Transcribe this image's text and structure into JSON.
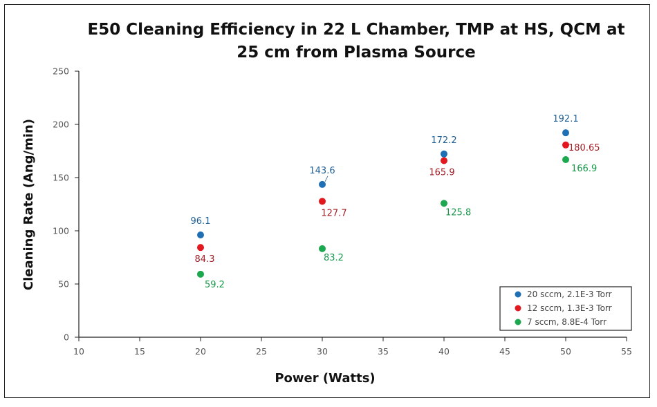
{
  "chart_data": {
    "type": "scatter",
    "title_lines": [
      "E50 Cleaning Efficiency in 22 L Chamber, TMP at HS, QCM at",
      "25 cm from Plasma Source"
    ],
    "xlabel": "Power (Watts)",
    "ylabel": "Cleaning Rate (Ang/min)",
    "xlim": [
      10,
      55
    ],
    "ylim": [
      0,
      250
    ],
    "x_ticks": [
      10,
      15,
      20,
      25,
      30,
      35,
      40,
      45,
      50,
      55
    ],
    "y_ticks": [
      0,
      50,
      100,
      150,
      200,
      250
    ],
    "grid": false,
    "legend_position": "bottom-right",
    "series": [
      {
        "name": "20 sccm, 2.1E-3 Torr",
        "color": "#1f6fb5",
        "label_color": "#1f5f96",
        "points": [
          {
            "x": 20,
            "y": 96.1,
            "label": "96.1"
          },
          {
            "x": 30,
            "y": 143.6,
            "label": "143.6"
          },
          {
            "x": 40,
            "y": 172.2,
            "label": "172.2"
          },
          {
            "x": 50,
            "y": 192.1,
            "label": "192.1"
          }
        ]
      },
      {
        "name": "12 sccm, 1.3E-3 Torr",
        "color": "#e3171e",
        "label_color": "#a11d26",
        "points": [
          {
            "x": 20,
            "y": 84.3,
            "label": "84.3"
          },
          {
            "x": 30,
            "y": 127.7,
            "label": "127.7"
          },
          {
            "x": 40,
            "y": 165.9,
            "label": "165.9"
          },
          {
            "x": 50,
            "y": 180.65,
            "label": "180.65"
          }
        ]
      },
      {
        "name": "7 sccm, 8.8E-4 Torr",
        "color": "#1ba84e",
        "label_color": "#16984a",
        "points": [
          {
            "x": 20,
            "y": 59.2,
            "label": "59.2"
          },
          {
            "x": 30,
            "y": 83.2,
            "label": "83.2"
          },
          {
            "x": 40,
            "y": 125.8,
            "label": "125.8"
          },
          {
            "x": 50,
            "y": 166.9,
            "label": "166.9"
          }
        ]
      }
    ]
  }
}
